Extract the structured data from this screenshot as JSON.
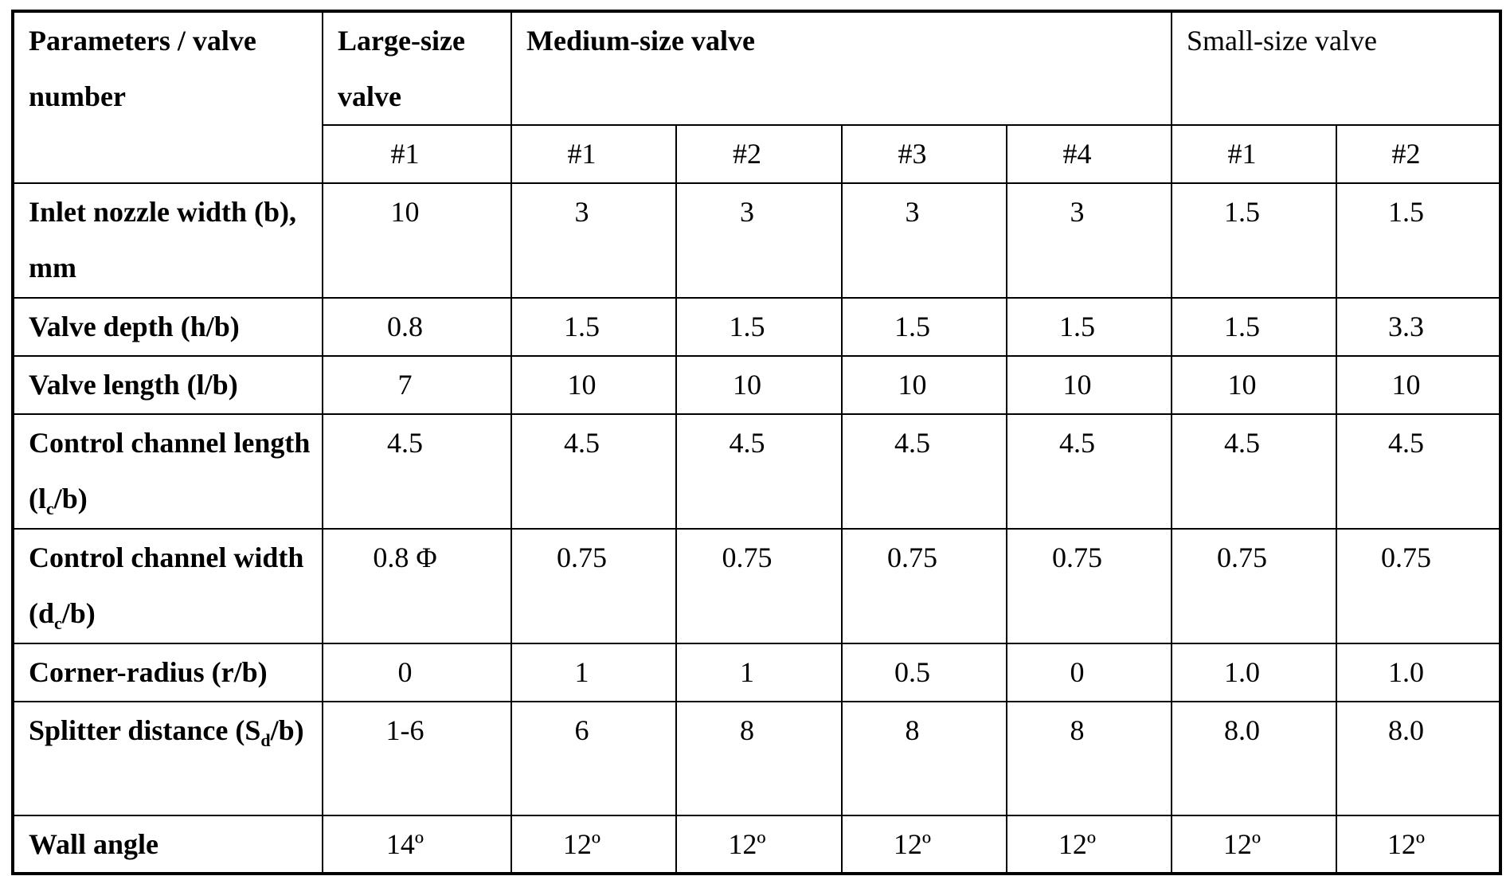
{
  "table": {
    "header": {
      "corner": "Parameters / valve number",
      "groups": [
        {
          "label": "Large-size valve",
          "numbers": [
            "#1"
          ]
        },
        {
          "label": "Medium-size valve",
          "numbers": [
            "#1",
            "#2",
            "#3",
            "#4"
          ]
        },
        {
          "label": "Small-size valve",
          "numbers": [
            "#1",
            "#2"
          ]
        }
      ]
    },
    "rows": [
      {
        "label": "Inlet nozzle width (b), mm",
        "values": [
          "10",
          "3",
          "3",
          "3",
          "3",
          "1.5",
          "1.5"
        ]
      },
      {
        "label": "Valve depth (h/b)",
        "values": [
          "0.8",
          "1.5",
          "1.5",
          "1.5",
          "1.5",
          "1.5",
          "3.3"
        ]
      },
      {
        "label": "Valve length (l/b)",
        "values": [
          "7",
          "10",
          "10",
          "10",
          "10",
          "10",
          "10"
        ]
      },
      {
        "label": [
          "Control channel length (l",
          "c",
          "/b)"
        ],
        "values": [
          "4.5",
          "4.5",
          "4.5",
          "4.5",
          "4.5",
          "4.5",
          "4.5"
        ]
      },
      {
        "label": [
          "Control channel width (d",
          "c",
          "/b)"
        ],
        "values": [
          "0.8 Φ",
          "0.75",
          "0.75",
          "0.75",
          "0.75",
          "0.75",
          "0.75"
        ]
      },
      {
        "label": "Corner-radius (r/b)",
        "values": [
          "0",
          "1",
          "1",
          "0.5",
          "0",
          "1.0",
          "1.0"
        ]
      },
      {
        "label": [
          "Splitter distance (S",
          "d",
          "/b)"
        ],
        "values": [
          "1-6",
          "6",
          "8",
          "8",
          "8",
          "8.0",
          "8.0"
        ]
      },
      {
        "label": "Wall angle",
        "values": [
          "14º",
          "12º",
          "12º",
          "12º",
          "12º",
          "12º",
          "12º"
        ]
      }
    ]
  }
}
